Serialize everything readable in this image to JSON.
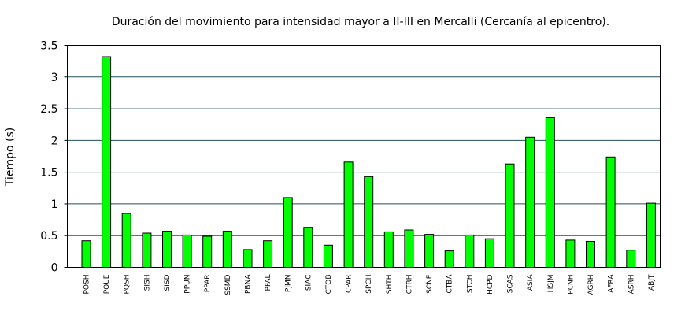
{
  "chart_data": {
    "type": "bar",
    "title": "Duración del movimiento para intensidad mayor a II-III en Mercalli (Cercanía al epicentro).",
    "xlabel": "",
    "ylabel": "Tiempo (s)",
    "ylim": [
      0,
      3.5
    ],
    "yticks": [
      "0",
      "0.5",
      "1",
      "1.5",
      "2",
      "2.5",
      "3",
      "3.5"
    ],
    "grid": true,
    "bar_color": "#00ff00",
    "grid_color": "#1f4f5f",
    "categories": [
      "POSH",
      "PQUE",
      "PQSH",
      "SISH",
      "SISD",
      "PPUN",
      "PPAR",
      "SSMD",
      "PBNA",
      "PFAL",
      "PJMN",
      "SIAC",
      "CTOB",
      "CPAR",
      "SPCH",
      "SHTH",
      "CTRH",
      "SCNE",
      "CTBA",
      "STCH",
      "HCPD",
      "SCAS",
      "ASIA",
      "HSJM",
      "PCNH",
      "AGRH",
      "AFRA",
      "ASRH",
      "ABJT"
    ],
    "values": [
      0.42,
      3.32,
      0.85,
      0.54,
      0.57,
      0.51,
      0.49,
      0.57,
      0.28,
      0.42,
      1.1,
      0.63,
      0.35,
      1.66,
      1.43,
      0.56,
      0.59,
      0.52,
      0.26,
      0.51,
      0.45,
      1.63,
      2.05,
      2.36,
      0.43,
      0.41,
      1.74,
      0.27,
      1.01
    ]
  }
}
